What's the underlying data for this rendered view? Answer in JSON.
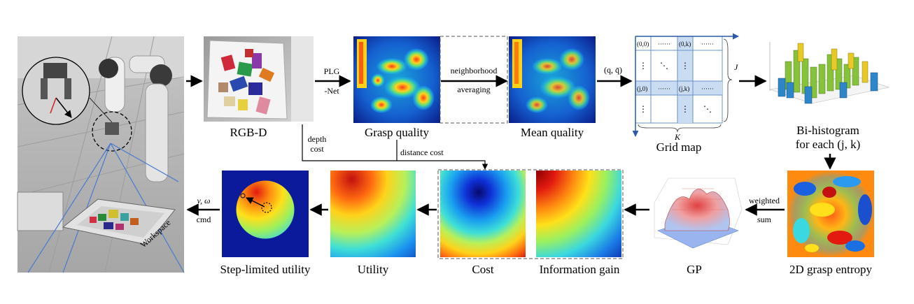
{
  "captions": {
    "rgbd": "RGB-D",
    "grasp_quality": "Grasp quality",
    "mean_quality": "Mean quality",
    "grid_map": "Grid map",
    "bihist_line1": "Bi-histogram",
    "bihist_line2": "for each (j, k)",
    "entropy": "2D grasp entropy",
    "gp": "GP",
    "info_gain": "Information gain",
    "cost": "Cost",
    "utility": "Utility",
    "step_utility": "Step-limited utility"
  },
  "edge_labels": {
    "plg_line1": "PLG",
    "plg_line2": "-Net",
    "neighborhood": "neighborhood",
    "averaging": "averaging",
    "q_qbar": "(q,  q̄)",
    "depth_line1": "depth",
    "depth_line2": "cost",
    "distance_cost": "distance cost",
    "weighted_line1": "weighted",
    "weighted_line2": "sum",
    "vw": "v,  ω",
    "cmd": "cmd"
  },
  "grid_map": {
    "cells": {
      "c00": "(0,0)",
      "c0k": "(0,k)",
      "cj0": "(j,0)",
      "cjk": "(j,k)",
      "hdots": "······",
      "vdots": "⋮",
      "ddots": "⋱"
    },
    "J": "J",
    "K": "K"
  },
  "scene": {
    "workspace": "Workspace"
  },
  "colors": {
    "arrow": "#000000",
    "grid_axis": "#2a5aa8",
    "grid_line": "#6a8fc8",
    "grid_highlight": "#c9dcf2",
    "bar_green": "#86c23a",
    "bar_blue": "#2e86c8",
    "bar_yellow": "#e7c928"
  }
}
